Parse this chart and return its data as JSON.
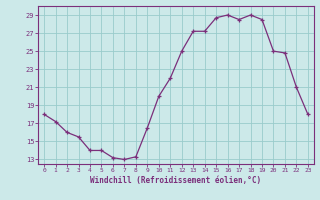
{
  "x": [
    0,
    1,
    2,
    3,
    4,
    5,
    6,
    7,
    8,
    9,
    10,
    11,
    12,
    13,
    14,
    15,
    16,
    17,
    18,
    19,
    20,
    21,
    22,
    23
  ],
  "y": [
    18.0,
    17.2,
    16.0,
    15.5,
    14.0,
    14.0,
    13.2,
    13.0,
    13.3,
    16.5,
    20.0,
    22.0,
    25.0,
    27.2,
    27.2,
    28.7,
    29.0,
    28.5,
    29.0,
    28.5,
    25.0,
    24.8,
    21.0,
    18.0
  ],
  "line_color": "#7b2f7b",
  "marker": "+",
  "bg_color": "#cce9e9",
  "grid_color": "#99cccc",
  "xlabel": "Windchill (Refroidissement éolien,°C)",
  "ylim": [
    12.5,
    30.0
  ],
  "yticks": [
    13,
    15,
    17,
    19,
    21,
    23,
    25,
    27,
    29
  ],
  "xticks": [
    0,
    1,
    2,
    3,
    4,
    5,
    6,
    7,
    8,
    9,
    10,
    11,
    12,
    13,
    14,
    15,
    16,
    17,
    18,
    19,
    20,
    21,
    22,
    23
  ]
}
